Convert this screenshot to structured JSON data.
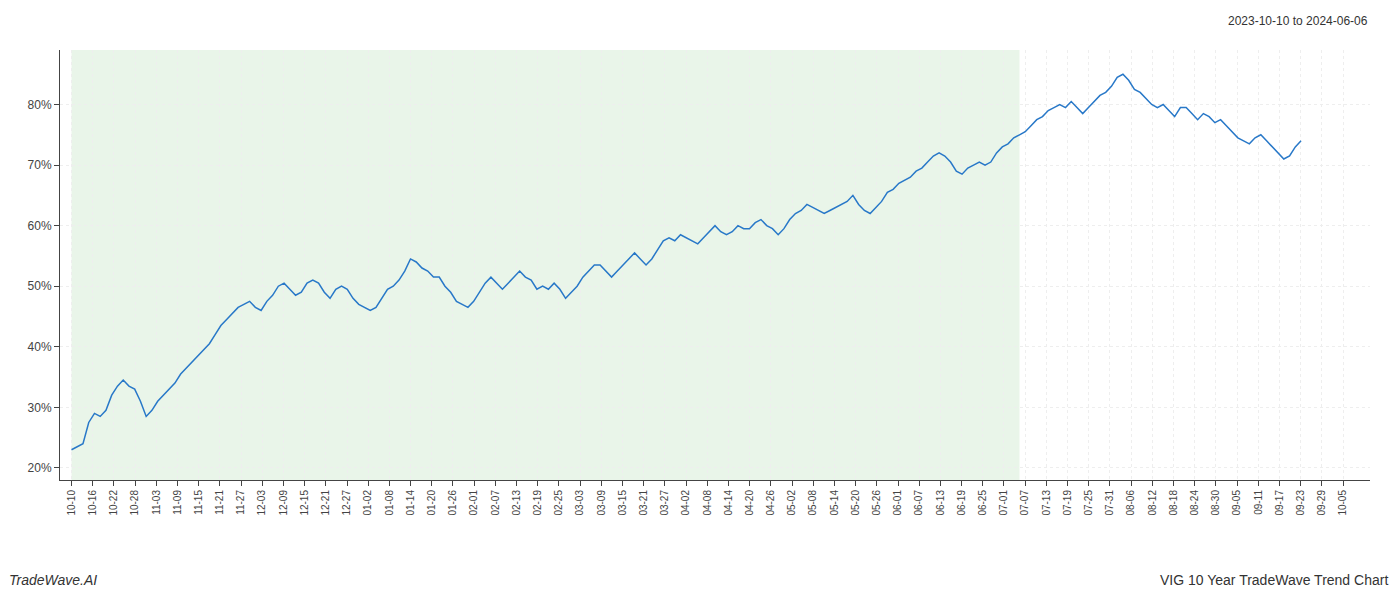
{
  "chart_data": {
    "type": "line",
    "title": "VIG 10 Year TradeWave Trend Chart",
    "subtitle": "2023-10-10 to 2024-06-06",
    "annotations": [
      "TradeWave.AI"
    ],
    "color": "#2878c8",
    "grid": true,
    "shaded_x": [
      0,
      165
    ],
    "shaded_color": "#daeeda",
    "xlim": [
      -2,
      226
    ],
    "xticks": [
      {
        "value": 0,
        "label": "10-10"
      },
      {
        "value": 3.6885,
        "label": "10-16"
      },
      {
        "value": 7.377,
        "label": "10-22"
      },
      {
        "value": 11.0656,
        "label": "10-28"
      },
      {
        "value": 14.7541,
        "label": "11-03"
      },
      {
        "value": 18.4426,
        "label": "11-09"
      },
      {
        "value": 22.1311,
        "label": "11-15"
      },
      {
        "value": 25.8197,
        "label": "11-21"
      },
      {
        "value": 29.5082,
        "label": "11-27"
      },
      {
        "value": 33.1967,
        "label": "12-03"
      },
      {
        "value": 36.8852,
        "label": "12-09"
      },
      {
        "value": 40.5738,
        "label": "12-15"
      },
      {
        "value": 44.2623,
        "label": "12-21"
      },
      {
        "value": 47.9508,
        "label": "12-27"
      },
      {
        "value": 51.6393,
        "label": "01-02"
      },
      {
        "value": 55.3279,
        "label": "01-08"
      },
      {
        "value": 59.0164,
        "label": "01-14"
      },
      {
        "value": 62.7049,
        "label": "01-20"
      },
      {
        "value": 66.3934,
        "label": "01-26"
      },
      {
        "value": 70.082,
        "label": "02-01"
      },
      {
        "value": 73.7705,
        "label": "02-07"
      },
      {
        "value": 77.459,
        "label": "02-13"
      },
      {
        "value": 81.1475,
        "label": "02-19"
      },
      {
        "value": 84.8361,
        "label": "02-25"
      },
      {
        "value": 88.5246,
        "label": "03-03"
      },
      {
        "value": 92.2131,
        "label": "03-09"
      },
      {
        "value": 95.9016,
        "label": "03-15"
      },
      {
        "value": 99.5902,
        "label": "03-21"
      },
      {
        "value": 103.2787,
        "label": "03-27"
      },
      {
        "value": 106.9672,
        "label": "04-02"
      },
      {
        "value": 110.6557,
        "label": "04-08"
      },
      {
        "value": 114.3443,
        "label": "04-14"
      },
      {
        "value": 118.0328,
        "label": "04-20"
      },
      {
        "value": 121.7213,
        "label": "04-26"
      },
      {
        "value": 125.4098,
        "label": "05-02"
      },
      {
        "value": 129.0984,
        "label": "05-08"
      },
      {
        "value": 132.7869,
        "label": "05-14"
      },
      {
        "value": 136.4754,
        "label": "05-20"
      },
      {
        "value": 140.1639,
        "label": "05-26"
      },
      {
        "value": 143.8525,
        "label": "06-01"
      },
      {
        "value": 147.541,
        "label": "06-07"
      },
      {
        "value": 151.2295,
        "label": "06-13"
      },
      {
        "value": 154.918,
        "label": "06-19"
      },
      {
        "value": 158.6066,
        "label": "06-25"
      },
      {
        "value": 162.2951,
        "label": "07-01"
      },
      {
        "value": 165.9836,
        "label": "07-07"
      },
      {
        "value": 169.6721,
        "label": "07-13"
      },
      {
        "value": 173.3607,
        "label": "07-19"
      },
      {
        "value": 177.0492,
        "label": "07-25"
      },
      {
        "value": 180.7377,
        "label": "07-31"
      },
      {
        "value": 184.4262,
        "label": "08-06"
      },
      {
        "value": 188.1148,
        "label": "08-12"
      },
      {
        "value": 191.8033,
        "label": "08-18"
      },
      {
        "value": 195.4918,
        "label": "08-24"
      },
      {
        "value": 199.1803,
        "label": "08-30"
      },
      {
        "value": 202.8689,
        "label": "09-05"
      },
      {
        "value": 206.5574,
        "label": "09-11"
      },
      {
        "value": 210.2459,
        "label": "09-17"
      },
      {
        "value": 213.9344,
        "label": "09-23"
      },
      {
        "value": 217.623,
        "label": "09-29"
      },
      {
        "value": 221.3115,
        "label": "10-05"
      }
    ],
    "ylim": [
      18,
      89
    ],
    "yticks": [
      {
        "value": 20,
        "label": "20%"
      },
      {
        "value": 30,
        "label": "30%"
      },
      {
        "value": 40,
        "label": "40%"
      },
      {
        "value": 50,
        "label": "50%"
      },
      {
        "value": 60,
        "label": "60%"
      },
      {
        "value": 70,
        "label": "70%"
      },
      {
        "value": 80,
        "label": "80%"
      }
    ],
    "values": [
      23.0,
      23.5,
      24.0,
      27.5,
      29.0,
      28.5,
      29.5,
      32.0,
      33.5,
      34.5,
      33.5,
      33.0,
      31.0,
      28.5,
      29.5,
      31.0,
      32.0,
      33.0,
      34.0,
      35.5,
      36.5,
      37.5,
      38.5,
      39.5,
      40.5,
      42.0,
      43.5,
      44.5,
      45.5,
      46.5,
      47.0,
      47.5,
      46.5,
      46.0,
      47.5,
      48.5,
      50.0,
      50.5,
      49.5,
      48.5,
      49.0,
      50.5,
      51.0,
      50.5,
      49.0,
      48.0,
      49.5,
      50.0,
      49.5,
      48.0,
      47.0,
      46.5,
      46.0,
      46.5,
      48.0,
      49.5,
      50.0,
      51.0,
      52.5,
      54.5,
      54.0,
      53.0,
      52.5,
      51.5,
      51.5,
      50.0,
      49.0,
      47.5,
      47.0,
      46.5,
      47.5,
      49.0,
      50.5,
      51.5,
      50.5,
      49.5,
      50.5,
      51.5,
      52.5,
      51.5,
      51.0,
      49.5,
      50.0,
      49.5,
      50.5,
      49.5,
      48.0,
      49.0,
      50.0,
      51.5,
      52.5,
      53.5,
      53.5,
      52.5,
      51.5,
      52.5,
      53.5,
      54.5,
      55.5,
      54.5,
      53.5,
      54.5,
      56.0,
      57.5,
      58.0,
      57.5,
      58.5,
      58.0,
      57.5,
      57.0,
      58.0,
      59.0,
      60.0,
      59.0,
      58.5,
      59.0,
      60.0,
      59.5,
      59.5,
      60.5,
      61.0,
      60.0,
      59.5,
      58.5,
      59.5,
      61.0,
      62.0,
      62.5,
      63.5,
      63.0,
      62.5,
      62.0,
      62.5,
      63.0,
      63.5,
      64.0,
      65.0,
      63.5,
      62.5,
      62.0,
      63.0,
      64.0,
      65.5,
      66.0,
      67.0,
      67.5,
      68.0,
      69.0,
      69.5,
      70.5,
      71.5,
      72.0,
      71.5,
      70.5,
      69.0,
      68.5,
      69.5,
      70.0,
      70.5,
      70.0,
      70.5,
      72.0,
      73.0,
      73.5,
      74.5,
      75.0,
      75.5,
      76.5,
      77.5,
      78.0,
      79.0,
      79.5,
      80.0,
      79.5,
      80.5,
      79.5,
      78.5,
      79.5,
      80.5,
      81.5,
      82.0,
      83.0,
      84.5,
      85.0,
      84.0,
      82.5,
      82.0,
      81.0,
      80.0,
      79.5,
      80.0,
      79.0,
      78.0,
      79.5,
      79.5,
      78.5,
      77.5,
      78.5,
      78.0,
      77.0,
      77.5,
      76.5,
      75.5,
      74.5,
      74.0,
      73.5,
      74.5,
      75.0,
      74.0,
      73.0,
      72.0,
      71.0,
      71.5,
      73.0,
      74.0
    ]
  }
}
